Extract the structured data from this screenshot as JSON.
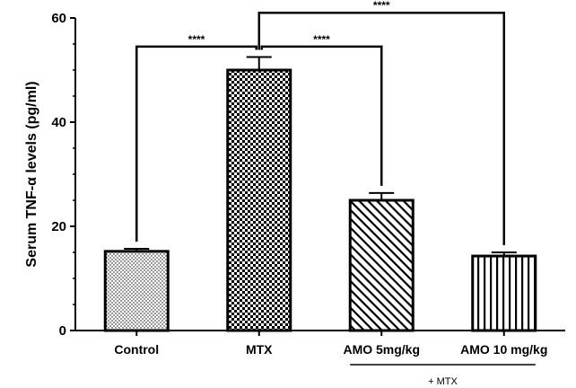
{
  "chart_data": {
    "type": "bar",
    "title": "",
    "xlabel": "",
    "ylabel": "Serum TNF-α levels (pg/ml)",
    "ylim": [
      0,
      60
    ],
    "yticks": [
      0,
      20,
      40,
      60
    ],
    "grid": false,
    "categories": [
      "Control",
      "MTX",
      "AMO 5mg/kg",
      "AMO 10 mg/kg"
    ],
    "values": [
      15.2,
      50.0,
      25.0,
      14.3
    ],
    "errors": [
      0.5,
      2.5,
      1.4,
      0.7
    ],
    "patterns": [
      "dots",
      "checker",
      "diagonal",
      "vertical"
    ],
    "group_annotation": {
      "label": "+ MTX",
      "categories": [
        "AMO 5mg/kg",
        "AMO 10 mg/kg"
      ]
    },
    "significance": [
      {
        "from": "Control",
        "to": "MTX",
        "label": "****"
      },
      {
        "from": "MTX",
        "to": "AMO 5mg/kg",
        "label": "****"
      },
      {
        "from": "MTX",
        "to": "AMO 10 mg/kg",
        "label": "****"
      }
    ]
  }
}
